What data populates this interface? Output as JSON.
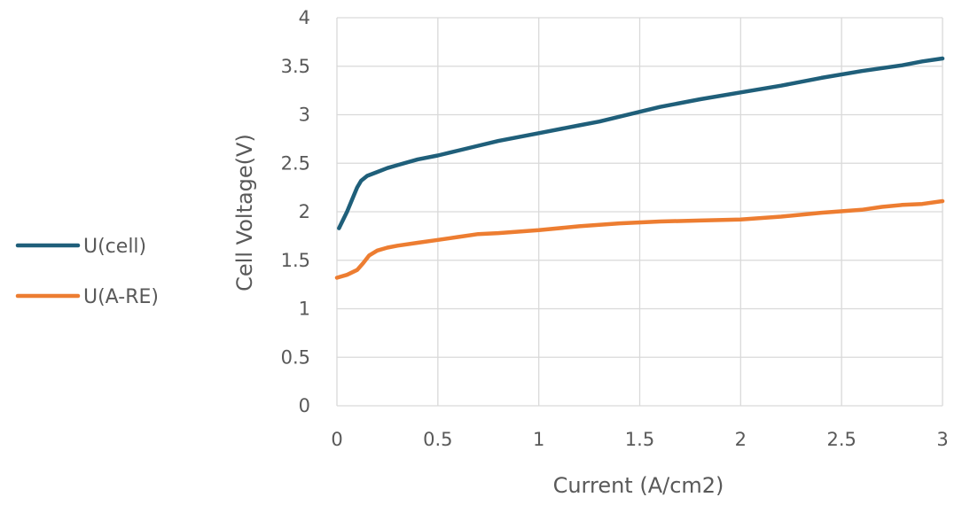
{
  "chart_data": {
    "type": "line",
    "title": "",
    "xlabel": "Current (A/cm2)",
    "ylabel": "Cell Voltage(V)",
    "xlim": [
      0,
      3
    ],
    "ylim": [
      0,
      4
    ],
    "x_ticks": [
      "0",
      "0.5",
      "1",
      "1.5",
      "2",
      "2.5",
      "3"
    ],
    "y_ticks": [
      "0",
      "0.5",
      "1",
      "1.5",
      "2",
      "2.5",
      "3",
      "3.5",
      "4"
    ],
    "grid": true,
    "legend_position": "left",
    "series": [
      {
        "name": "U(cell)",
        "color": "#1f5f7a",
        "x": [
          0.01,
          0.05,
          0.08,
          0.1,
          0.12,
          0.15,
          0.2,
          0.25,
          0.3,
          0.4,
          0.5,
          0.6,
          0.7,
          0.8,
          0.9,
          1.0,
          1.2,
          1.3,
          1.4,
          1.5,
          1.6,
          1.8,
          2.0,
          2.2,
          2.4,
          2.6,
          2.8,
          2.9,
          3.0
        ],
        "y": [
          1.83,
          2.0,
          2.15,
          2.25,
          2.32,
          2.37,
          2.41,
          2.45,
          2.48,
          2.54,
          2.58,
          2.63,
          2.68,
          2.73,
          2.77,
          2.81,
          2.89,
          2.93,
          2.98,
          3.03,
          3.08,
          3.16,
          3.23,
          3.3,
          3.38,
          3.45,
          3.51,
          3.55,
          3.58
        ]
      },
      {
        "name": "U(A-RE)",
        "color": "#ed7d31",
        "x": [
          0.0,
          0.05,
          0.1,
          0.13,
          0.16,
          0.2,
          0.25,
          0.3,
          0.4,
          0.5,
          0.6,
          0.7,
          0.8,
          1.0,
          1.2,
          1.4,
          1.6,
          1.8,
          2.0,
          2.2,
          2.4,
          2.6,
          2.7,
          2.8,
          2.9,
          3.0
        ],
        "y": [
          1.32,
          1.35,
          1.4,
          1.47,
          1.55,
          1.6,
          1.63,
          1.65,
          1.68,
          1.71,
          1.74,
          1.77,
          1.78,
          1.81,
          1.85,
          1.88,
          1.9,
          1.91,
          1.92,
          1.95,
          1.99,
          2.02,
          2.05,
          2.07,
          2.08,
          2.11
        ]
      }
    ]
  }
}
